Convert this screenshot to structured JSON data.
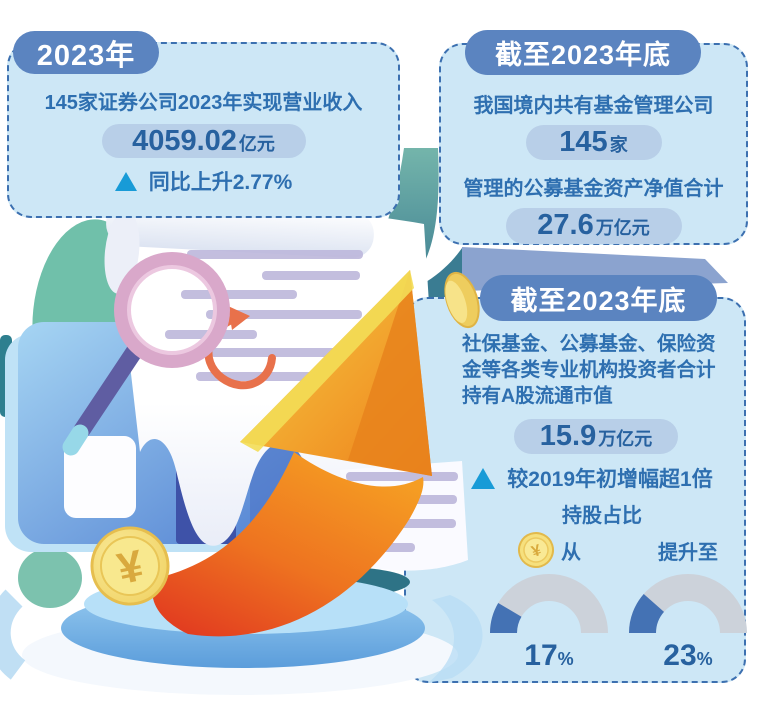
{
  "boxes": {
    "revenue": {
      "badge": "2023年",
      "line1": "145家证券公司2023年实现营业收入",
      "value": "4059.02",
      "value_unit": "亿元",
      "delta": "同比上升2.77%"
    },
    "funds": {
      "badge": "截至2023年底",
      "line1": "我国境内共有基金管理公司",
      "value1": "145",
      "value1_unit": "家",
      "line2": "管理的公募基金资产净值合计",
      "value2": "27.6",
      "value2_unit": "万亿元"
    },
    "holdings": {
      "badge": "截至2023年底",
      "para": "社保基金、公募基金、保险资金等各类专业机构投资者合计持有A股流通市值",
      "value": "15.9",
      "value_unit": "万亿元",
      "delta": "较2019年初增幅超1倍"
    }
  },
  "chart_data": {
    "type": "gauge",
    "title": "持股占比",
    "span_deg": 180,
    "gauges": [
      {
        "label": "从",
        "value": 17,
        "display": "17",
        "unit": "%",
        "max": 100
      },
      {
        "label": "提升至",
        "value": 23,
        "display": "23",
        "unit": "%",
        "max": 100
      }
    ],
    "track_color": "#ccd2da",
    "fill_color": "#4472b4",
    "legend_position": "below"
  },
  "icons": {
    "yuan_symbol": "¥"
  },
  "colors": {
    "panel_bg": "#cde7f6",
    "panel_border": "#3c70b0",
    "badge_bg": "#5b84c0",
    "text_blue": "#2e6fb0",
    "pill_bg": "#b8cfe8",
    "triangle_up": "#189bd7",
    "arrow_orange": "#ee7f1a",
    "arrow_red": "#e03420",
    "coin_gold": "#f2d566"
  }
}
